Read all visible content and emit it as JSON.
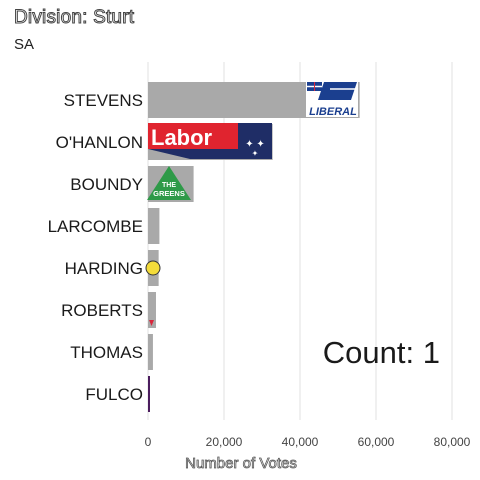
{
  "header": {
    "title": "Division: Sturt",
    "subtitle": "SA"
  },
  "counter": {
    "label": "Count:  1"
  },
  "logos": {
    "liberal": "LIBERAL",
    "labor": "Labor",
    "greens_line1": "THE",
    "greens_line2": "GREENS"
  },
  "colors": {
    "bar": "#a9a9a9",
    "grid": "#e0e0e0",
    "fulco_bar": "#4b1d5e",
    "liberal_blue": "#1b3f8f",
    "labor_red": "#e0242f",
    "labor_navy": "#1f2d66",
    "greens_green": "#2e9a48",
    "harding_yellow": "#f4dc3a",
    "roberts_red": "#d9273c"
  },
  "chart_data": {
    "type": "bar",
    "orientation": "horizontal",
    "categories": [
      "STEVENS",
      "O'HANLON",
      "BOUNDY",
      "LARCOMBE",
      "HARDING",
      "ROBERTS",
      "THOMAS",
      "FULCO"
    ],
    "values": [
      55700,
      32800,
      12000,
      3000,
      2800,
      2100,
      1300,
      400
    ],
    "xlabel": "Number of Votes",
    "xlim": [
      0,
      80000
    ],
    "xticks": [
      0,
      20000,
      40000,
      60000,
      80000
    ],
    "xtick_labels": [
      "0",
      "20,000",
      "40,000",
      "60,000",
      "80,000"
    ],
    "grid": true
  }
}
